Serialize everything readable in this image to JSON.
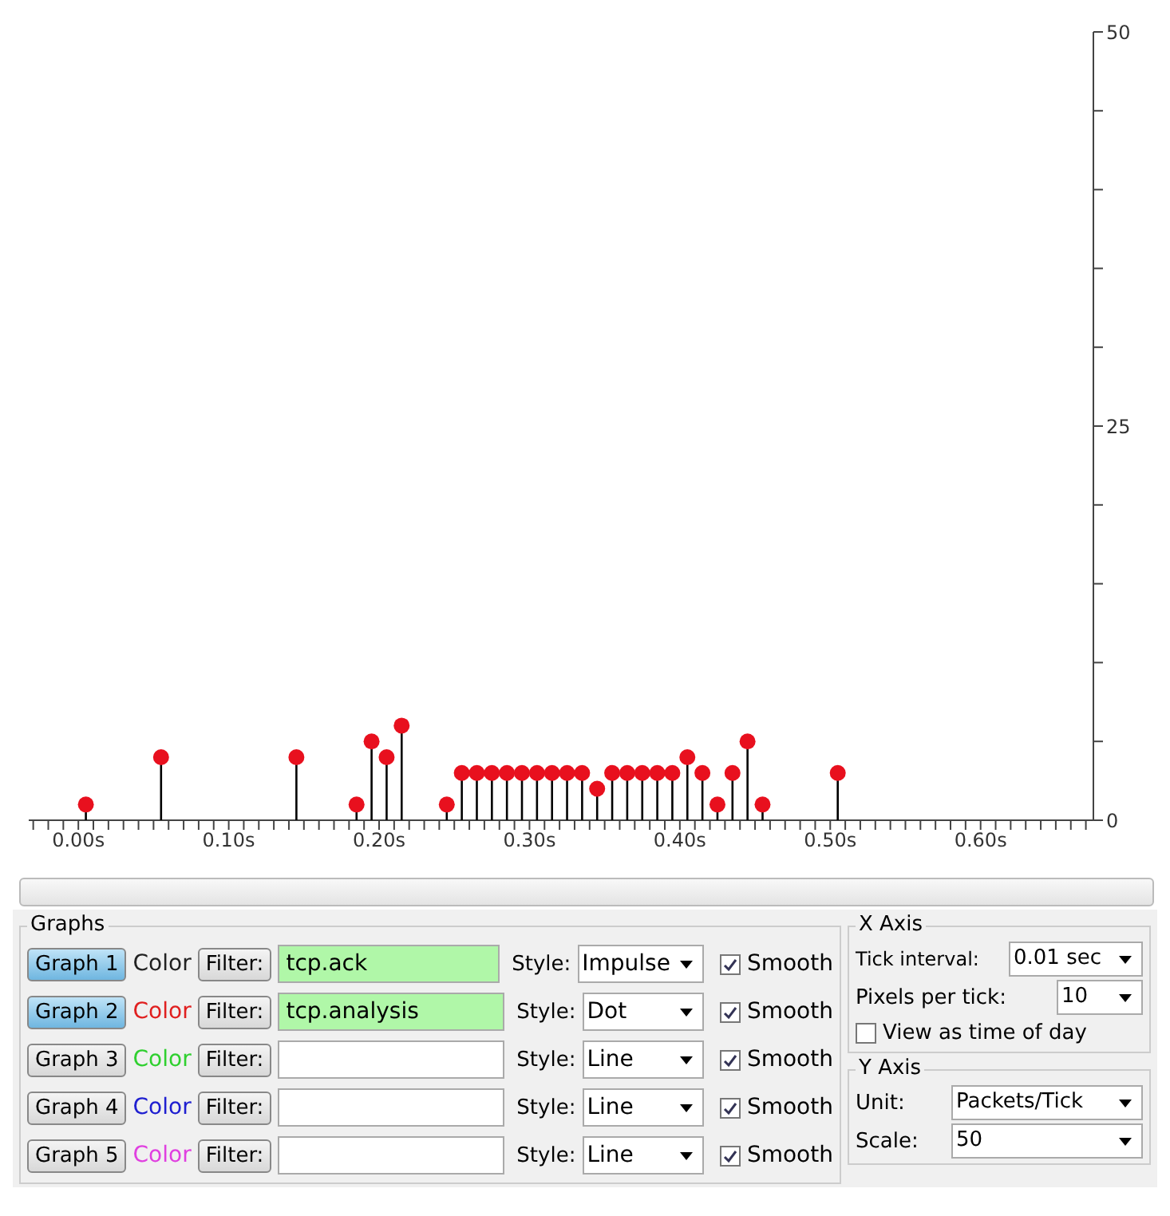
{
  "chart_data": [
    {
      "type": "lollipop",
      "x": [
        0.005,
        0.055,
        0.145,
        0.185,
        0.195,
        0.205,
        0.215,
        0.245,
        0.255,
        0.265,
        0.275,
        0.285,
        0.295,
        0.305,
        0.315,
        0.325,
        0.335,
        0.345,
        0.355,
        0.365,
        0.375,
        0.385,
        0.395,
        0.405,
        0.415,
        0.425,
        0.435,
        0.445,
        0.455,
        0.505
      ],
      "series": [
        {
          "color": "#e8101e",
          "values": [
            1,
            4,
            4,
            1,
            5,
            4,
            6,
            1,
            3,
            3,
            3,
            3,
            3,
            3,
            3,
            3,
            3,
            2,
            3,
            3,
            3,
            3,
            3,
            4,
            3,
            1,
            3,
            5,
            1,
            3
          ]
        }
      ],
      "marker": "circle",
      "xlim": [
        -0.033,
        0.675
      ],
      "ylim": [
        0,
        50
      ],
      "xticks": [
        {
          "value": -0.03,
          "label": null
        },
        {
          "value": -0.02,
          "label": null
        },
        {
          "value": -0.01,
          "label": null
        },
        {
          "value": 0,
          "label": "0.00s"
        },
        {
          "value": 0.01,
          "label": null
        },
        {
          "value": 0.02,
          "label": null
        },
        {
          "value": 0.03,
          "label": null
        },
        {
          "value": 0.04,
          "label": null
        },
        {
          "value": 0.05,
          "label": null
        },
        {
          "value": 0.06,
          "label": null
        },
        {
          "value": 0.07,
          "label": null
        },
        {
          "value": 0.08,
          "label": null
        },
        {
          "value": 0.09,
          "label": null
        },
        {
          "value": 0.1,
          "label": "0.10s"
        },
        {
          "value": 0.11,
          "label": null
        },
        {
          "value": 0.12,
          "label": null
        },
        {
          "value": 0.13,
          "label": null
        },
        {
          "value": 0.14,
          "label": null
        },
        {
          "value": 0.15,
          "label": null
        },
        {
          "value": 0.16,
          "label": null
        },
        {
          "value": 0.17,
          "label": null
        },
        {
          "value": 0.18,
          "label": null
        },
        {
          "value": 0.19,
          "label": null
        },
        {
          "value": 0.2,
          "label": "0.20s"
        },
        {
          "value": 0.21,
          "label": null
        },
        {
          "value": 0.22,
          "label": null
        },
        {
          "value": 0.23,
          "label": null
        },
        {
          "value": 0.24,
          "label": null
        },
        {
          "value": 0.25,
          "label": null
        },
        {
          "value": 0.26,
          "label": null
        },
        {
          "value": 0.27,
          "label": null
        },
        {
          "value": 0.28,
          "label": null
        },
        {
          "value": 0.29,
          "label": null
        },
        {
          "value": 0.3,
          "label": "0.30s"
        },
        {
          "value": 0.31,
          "label": null
        },
        {
          "value": 0.32,
          "label": null
        },
        {
          "value": 0.33,
          "label": null
        },
        {
          "value": 0.34,
          "label": null
        },
        {
          "value": 0.35,
          "label": null
        },
        {
          "value": 0.36,
          "label": null
        },
        {
          "value": 0.37,
          "label": null
        },
        {
          "value": 0.38,
          "label": null
        },
        {
          "value": 0.39,
          "label": null
        },
        {
          "value": 0.4,
          "label": "0.40s"
        },
        {
          "value": 0.41,
          "label": null
        },
        {
          "value": 0.42,
          "label": null
        },
        {
          "value": 0.43,
          "label": null
        },
        {
          "value": 0.44,
          "label": null
        },
        {
          "value": 0.45,
          "label": null
        },
        {
          "value": 0.46,
          "label": null
        },
        {
          "value": 0.47,
          "label": null
        },
        {
          "value": 0.48,
          "label": null
        },
        {
          "value": 0.49,
          "label": null
        },
        {
          "value": 0.5,
          "label": "0.50s"
        },
        {
          "value": 0.51,
          "label": null
        },
        {
          "value": 0.52,
          "label": null
        },
        {
          "value": 0.53,
          "label": null
        },
        {
          "value": 0.54,
          "label": null
        },
        {
          "value": 0.55,
          "label": null
        },
        {
          "value": 0.56,
          "label": null
        },
        {
          "value": 0.57,
          "label": null
        },
        {
          "value": 0.58,
          "label": null
        },
        {
          "value": 0.59,
          "label": null
        },
        {
          "value": 0.6,
          "label": "0.60s"
        },
        {
          "value": 0.61,
          "label": null
        },
        {
          "value": 0.62,
          "label": null
        },
        {
          "value": 0.63,
          "label": null
        },
        {
          "value": 0.64,
          "label": null
        },
        {
          "value": 0.65,
          "label": null
        },
        {
          "value": 0.66,
          "label": null
        },
        {
          "value": 0.67,
          "label": null
        }
      ],
      "yticks": [
        0,
        {
          "value": 5,
          "label": null
        },
        {
          "value": 10,
          "label": null
        },
        {
          "value": 15,
          "label": null
        },
        {
          "value": 20,
          "label": null
        },
        25,
        {
          "value": 30,
          "label": null
        },
        {
          "value": 35,
          "label": null
        },
        {
          "value": 40,
          "label": null
        },
        {
          "value": 45,
          "label": null
        },
        50
      ]
    },
    {
      "type": "other",
      "annotations": [
        "Graphs",
        "Graph 1",
        "Color",
        "Filter:",
        "tcp.ack",
        "Style:",
        "Impulse",
        "Smooth",
        "Graph 2",
        "Color",
        "Filter:",
        "tcp.analysis",
        "Style:",
        "Dot",
        "Smooth",
        "Graph 3",
        "Color",
        "Filter:",
        "Style:",
        "Line",
        "Smooth",
        "Graph 4",
        "Color",
        "Filter:",
        "Style:",
        "Line",
        "Smooth",
        "Graph 5",
        "Color",
        "Filter:",
        "Style:",
        "Line",
        "Smooth",
        "X Axis",
        "Tick interval:",
        "0.01 sec",
        "Pixels per tick:",
        "10",
        "View as time of day",
        "Y Axis",
        "Unit:",
        "Packets/Tick",
        "Scale:",
        "50"
      ]
    }
  ]
}
